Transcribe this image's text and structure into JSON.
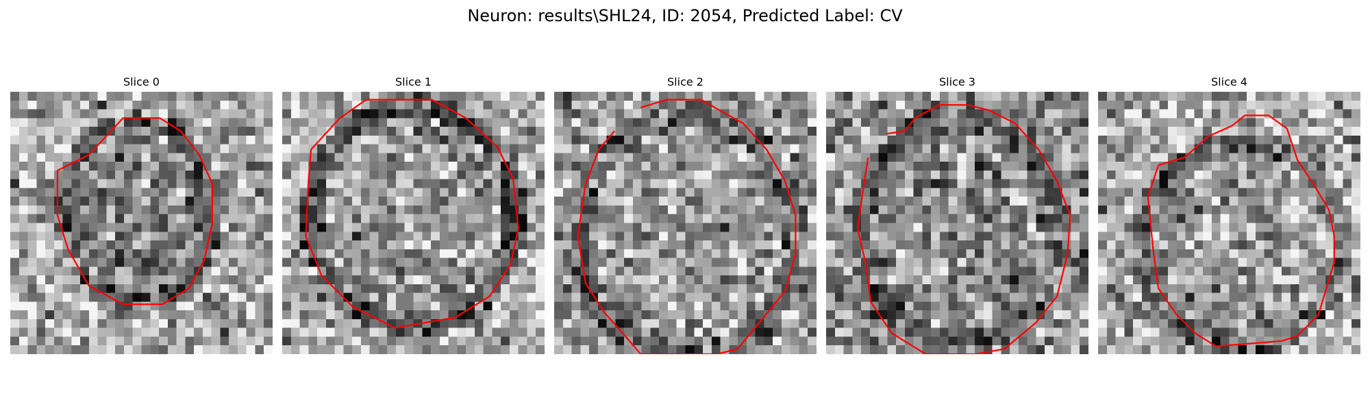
{
  "figure": {
    "title": "Neuron: results\\SHL24, ID: 2054, Predicted Label: CV"
  },
  "contour_color": "#ff0000",
  "colormap": "gray",
  "slices": [
    {
      "title": "Slice 0"
    },
    {
      "title": "Slice 1"
    },
    {
      "title": "Slice 2"
    },
    {
      "title": "Slice 3"
    },
    {
      "title": "Slice 4"
    }
  ]
}
